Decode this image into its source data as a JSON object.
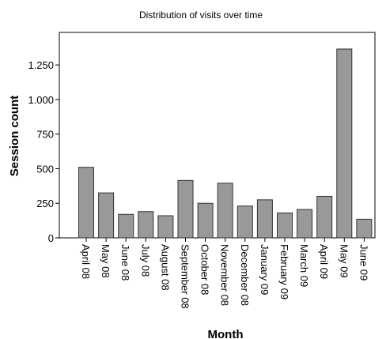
{
  "chart_data": {
    "type": "bar",
    "title": "Distribution of visits over time",
    "xlabel": "Month",
    "ylabel": "Session count",
    "categories": [
      "April 08",
      "May 08",
      "June 08",
      "July 08",
      "August 08",
      "September 08",
      "October 08",
      "November 08",
      "December 08",
      "January 09",
      "February 09",
      "March 09",
      "April 09",
      "May 09",
      "June 09"
    ],
    "values": [
      510,
      325,
      170,
      190,
      160,
      415,
      250,
      395,
      230,
      275,
      180,
      205,
      300,
      1365,
      135
    ],
    "ylim": [
      0,
      1485
    ],
    "yticks": [
      0,
      250,
      500,
      750,
      1000,
      1250
    ],
    "ytick_labels": [
      "0",
      "250",
      "500",
      "750",
      "1.000",
      "1.250"
    ],
    "grid": false,
    "colors": {
      "bar_fill": "#999999",
      "bar_stroke": "#333333"
    }
  }
}
